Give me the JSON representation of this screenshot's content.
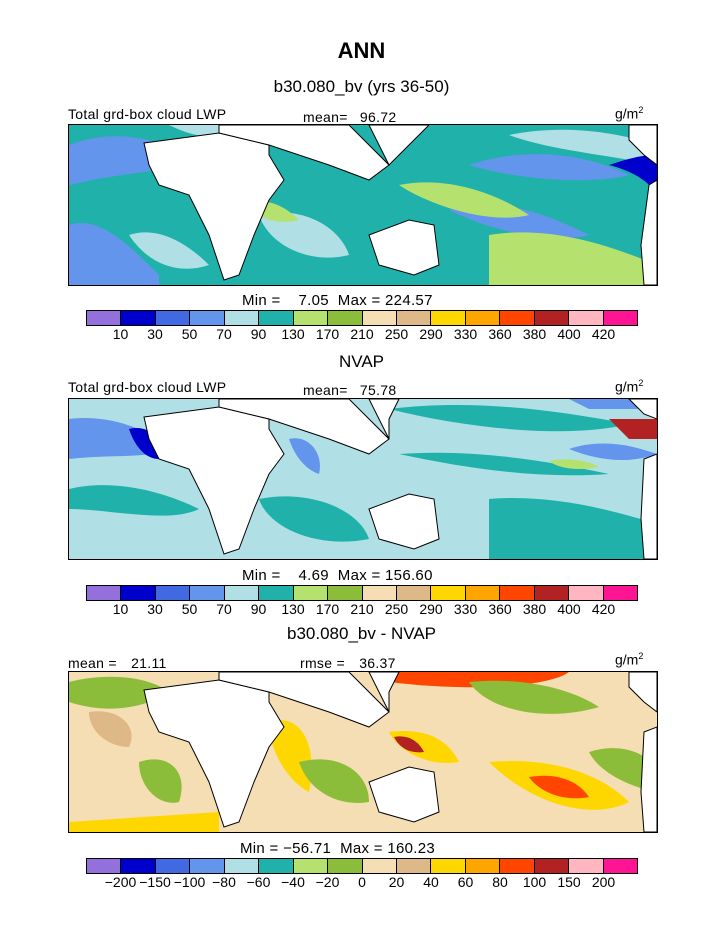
{
  "title": "ANN",
  "panels": [
    {
      "subtitle": "b30.080_bv (yrs 36-50)",
      "variable": "Total grd-box cloud LWP",
      "stat_label": "mean=",
      "stat_value": "96.72",
      "units_base": "g/m",
      "units_exp": "2",
      "minmax": "Min =    7.05  Max = 224.57",
      "colorbar_ticks": [
        "10",
        "30",
        "50",
        "70",
        "90",
        "130",
        "170",
        "210",
        "250",
        "290",
        "330",
        "360",
        "380",
        "400",
        "420"
      ]
    },
    {
      "subtitle": "NVAP",
      "variable": "Total grd-box cloud LWP",
      "stat_label": "mean=",
      "stat_value": "75.78",
      "units_base": "g/m",
      "units_exp": "2",
      "minmax": "Min =    4.69  Max = 156.60",
      "colorbar_ticks": [
        "10",
        "30",
        "50",
        "70",
        "90",
        "130",
        "170",
        "210",
        "250",
        "290",
        "330",
        "360",
        "380",
        "400",
        "420"
      ]
    },
    {
      "subtitle": "b30.080_bv - NVAP",
      "mean_label": "mean =",
      "mean_value": "21.11",
      "rmse_label": "rmse =",
      "rmse_value": "36.37",
      "units_base": "g/m",
      "units_exp": "2",
      "minmax": "Min = −56.71  Max = 160.23",
      "colorbar_ticks": [
        "−200",
        "−150",
        "−100",
        "−80",
        "−60",
        "−40",
        "−20",
        "0",
        "20",
        "40",
        "60",
        "80",
        "100",
        "150",
        "200"
      ]
    }
  ],
  "colors": {
    "c01": "#9370db",
    "c02": "#0000cd",
    "c03": "#4169e1",
    "c04": "#6495ed",
    "c05": "#b0e0e6",
    "c06": "#20b2aa",
    "c07": "#b5e26e",
    "c08": "#8cbd3a",
    "c09": "#f5deb3",
    "c10": "#deb887",
    "c11": "#ffd700",
    "c12": "#ffa500",
    "c13": "#ff4500",
    "c14": "#b22222",
    "c15": "#ffb6c1",
    "c16": "#ff1493",
    "land": "#ffffff",
    "coast": "#000000"
  }
}
